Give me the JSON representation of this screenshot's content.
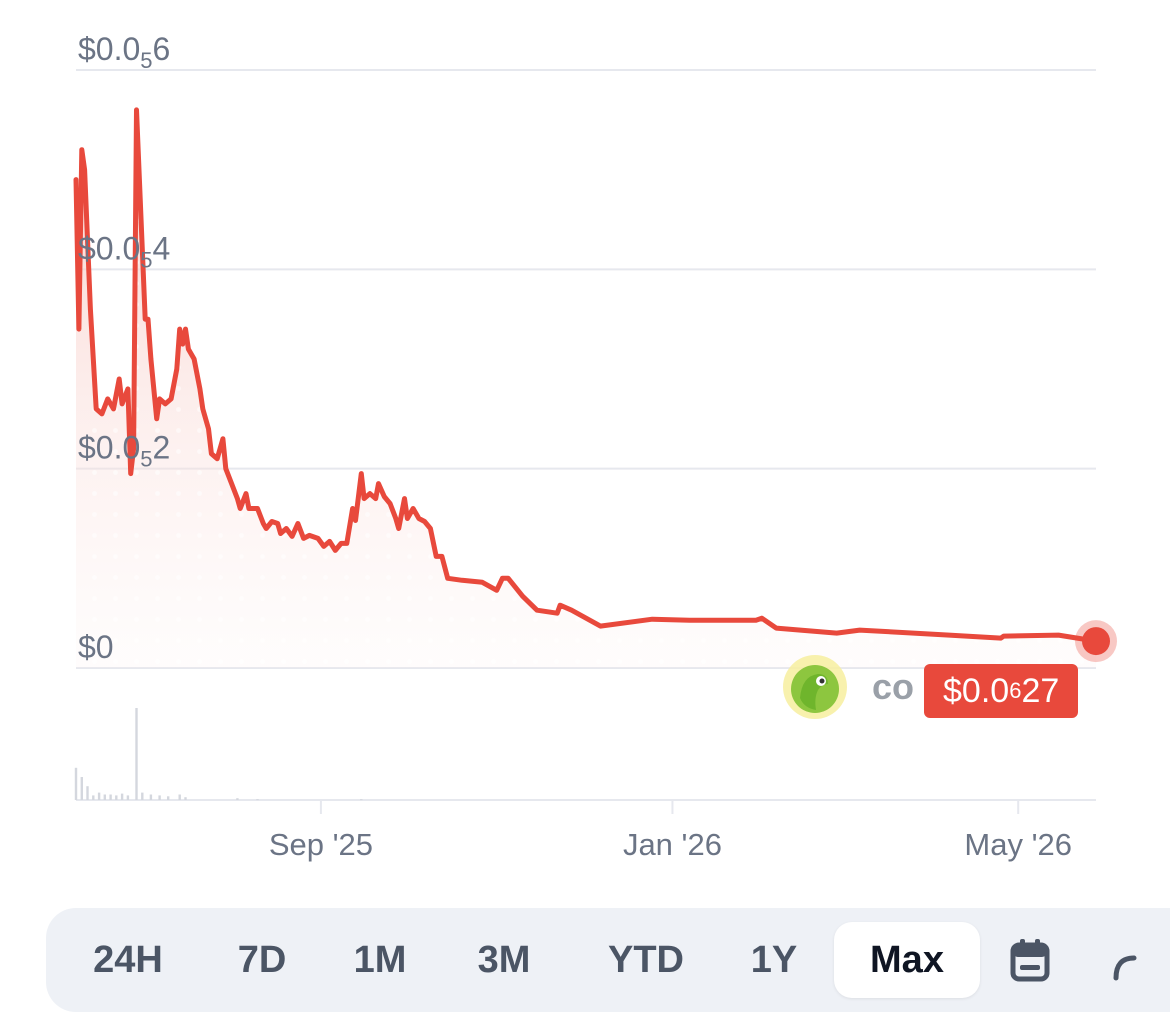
{
  "chart_data": {
    "type": "line",
    "title": "",
    "xlabel": "",
    "ylabel": "",
    "y_ticks": [
      {
        "value": 0,
        "label": "$0",
        "sub": "",
        "tail": ""
      },
      {
        "value": 2,
        "label": "$0.0",
        "sub": "5",
        "tail": "2"
      },
      {
        "value": 4,
        "label": "$0.0",
        "sub": "5",
        "tail": "4"
      },
      {
        "value": 6,
        "label": "$0.0",
        "sub": "5",
        "tail": "6"
      }
    ],
    "y_unit_note": "values in units of 0.000001 USD",
    "ylim": [
      0,
      6
    ],
    "xlim": [
      "2025-06-08",
      "2026-05-28"
    ],
    "x_ticks": [
      {
        "date": "2025-09-01",
        "label": "Sep '25"
      },
      {
        "date": "2026-01-01",
        "label": "Jan '26"
      },
      {
        "date": "2026-05-01",
        "label": "May '26"
      }
    ],
    "series": [
      {
        "name": "",
        "color": "#e8493c",
        "points": [
          [
            "2025-06-08",
            4.9
          ],
          [
            "2025-06-09",
            3.4
          ],
          [
            "2025-06-10",
            5.2
          ],
          [
            "2025-06-11",
            5.0
          ],
          [
            "2025-06-13",
            3.6
          ],
          [
            "2025-06-15",
            2.6
          ],
          [
            "2025-06-17",
            2.55
          ],
          [
            "2025-06-19",
            2.7
          ],
          [
            "2025-06-21",
            2.6
          ],
          [
            "2025-06-23",
            2.9
          ],
          [
            "2025-06-24",
            2.65
          ],
          [
            "2025-06-26",
            2.8
          ],
          [
            "2025-06-27",
            1.95
          ],
          [
            "2025-06-28",
            2.2
          ],
          [
            "2025-06-29",
            5.6
          ],
          [
            "2025-06-30",
            4.9
          ],
          [
            "2025-07-02",
            3.5
          ],
          [
            "2025-07-03",
            3.5
          ],
          [
            "2025-07-04",
            3.1
          ],
          [
            "2025-07-06",
            2.5
          ],
          [
            "2025-07-07",
            2.7
          ],
          [
            "2025-07-09",
            2.65
          ],
          [
            "2025-07-11",
            2.7
          ],
          [
            "2025-07-13",
            3.0
          ],
          [
            "2025-07-14",
            3.4
          ],
          [
            "2025-07-15",
            3.25
          ],
          [
            "2025-07-16",
            3.4
          ],
          [
            "2025-07-17",
            3.2
          ],
          [
            "2025-07-19",
            3.1
          ],
          [
            "2025-07-21",
            2.8
          ],
          [
            "2025-07-22",
            2.6
          ],
          [
            "2025-07-24",
            2.4
          ],
          [
            "2025-07-25",
            2.15
          ],
          [
            "2025-07-27",
            2.1
          ],
          [
            "2025-07-29",
            2.3
          ],
          [
            "2025-07-30",
            2.0
          ],
          [
            "2025-08-01",
            1.85
          ],
          [
            "2025-08-03",
            1.7
          ],
          [
            "2025-08-04",
            1.6
          ],
          [
            "2025-08-06",
            1.75
          ],
          [
            "2025-08-07",
            1.6
          ],
          [
            "2025-08-10",
            1.6
          ],
          [
            "2025-08-12",
            1.45
          ],
          [
            "2025-08-13",
            1.4
          ],
          [
            "2025-08-15",
            1.47
          ],
          [
            "2025-08-17",
            1.45
          ],
          [
            "2025-08-18",
            1.35
          ],
          [
            "2025-08-20",
            1.4
          ],
          [
            "2025-08-22",
            1.32
          ],
          [
            "2025-08-24",
            1.45
          ],
          [
            "2025-08-26",
            1.3
          ],
          [
            "2025-08-28",
            1.33
          ],
          [
            "2025-08-31",
            1.3
          ],
          [
            "2025-09-02",
            1.22
          ],
          [
            "2025-09-04",
            1.27
          ],
          [
            "2025-09-06",
            1.18
          ],
          [
            "2025-09-08",
            1.25
          ],
          [
            "2025-09-10",
            1.25
          ],
          [
            "2025-09-12",
            1.6
          ],
          [
            "2025-09-13",
            1.48
          ],
          [
            "2025-09-15",
            1.95
          ],
          [
            "2025-09-16",
            1.7
          ],
          [
            "2025-09-18",
            1.75
          ],
          [
            "2025-09-20",
            1.7
          ],
          [
            "2025-09-21",
            1.85
          ],
          [
            "2025-09-23",
            1.72
          ],
          [
            "2025-09-25",
            1.65
          ],
          [
            "2025-09-27",
            1.5
          ],
          [
            "2025-09-28",
            1.4
          ],
          [
            "2025-09-30",
            1.7
          ],
          [
            "2025-10-01",
            1.5
          ],
          [
            "2025-10-03",
            1.6
          ],
          [
            "2025-10-05",
            1.5
          ],
          [
            "2025-10-07",
            1.47
          ],
          [
            "2025-10-09",
            1.4
          ],
          [
            "2025-10-11",
            1.12
          ],
          [
            "2025-10-13",
            1.12
          ],
          [
            "2025-10-15",
            0.9
          ],
          [
            "2025-10-20",
            0.88
          ],
          [
            "2025-10-27",
            0.86
          ],
          [
            "2025-11-01",
            0.78
          ],
          [
            "2025-11-03",
            0.9
          ],
          [
            "2025-11-05",
            0.9
          ],
          [
            "2025-11-10",
            0.72
          ],
          [
            "2025-11-15",
            0.58
          ],
          [
            "2025-11-22",
            0.55
          ],
          [
            "2025-11-23",
            0.63
          ],
          [
            "2025-11-27",
            0.58
          ],
          [
            "2025-12-07",
            0.42
          ],
          [
            "2025-12-25",
            0.49
          ],
          [
            "2026-01-07",
            0.48
          ],
          [
            "2026-01-30",
            0.48
          ],
          [
            "2026-02-01",
            0.5
          ],
          [
            "2026-02-06",
            0.4
          ],
          [
            "2026-02-27",
            0.35
          ],
          [
            "2026-03-07",
            0.38
          ],
          [
            "2026-04-07",
            0.33
          ],
          [
            "2026-04-25",
            0.3
          ],
          [
            "2026-04-26",
            0.32
          ],
          [
            "2026-05-15",
            0.33
          ],
          [
            "2026-05-28",
            0.27
          ]
        ]
      }
    ],
    "volume": [
      [
        "2025-06-08",
        0.35
      ],
      [
        "2025-06-10",
        0.25
      ],
      [
        "2025-06-12",
        0.15
      ],
      [
        "2025-06-14",
        0.05
      ],
      [
        "2025-06-16",
        0.08
      ],
      [
        "2025-06-18",
        0.06
      ],
      [
        "2025-06-20",
        0.06
      ],
      [
        "2025-06-22",
        0.05
      ],
      [
        "2025-06-24",
        0.07
      ],
      [
        "2025-06-26",
        0.05
      ],
      [
        "2025-06-29",
        1.0
      ],
      [
        "2025-07-01",
        0.08
      ],
      [
        "2025-07-04",
        0.06
      ],
      [
        "2025-07-07",
        0.05
      ],
      [
        "2025-07-10",
        0.04
      ],
      [
        "2025-07-14",
        0.06
      ],
      [
        "2025-07-16",
        0.03
      ],
      [
        "2025-08-03",
        0.02
      ],
      [
        "2025-08-10",
        0.01
      ],
      [
        "2025-09-15",
        0.01
      ]
    ],
    "grid": true,
    "legend": "none",
    "last_value": {
      "label": "$0.0",
      "sub": "6",
      "tail": "27",
      "value": 0.27
    },
    "logo": {
      "text": "co"
    }
  },
  "range_selector": {
    "options": [
      "24H",
      "7D",
      "1M",
      "3M",
      "YTD",
      "1Y",
      "Max"
    ],
    "selected": "Max",
    "calendar_icon": "calendar-icon",
    "extra_icon": "chart-type-icon"
  }
}
